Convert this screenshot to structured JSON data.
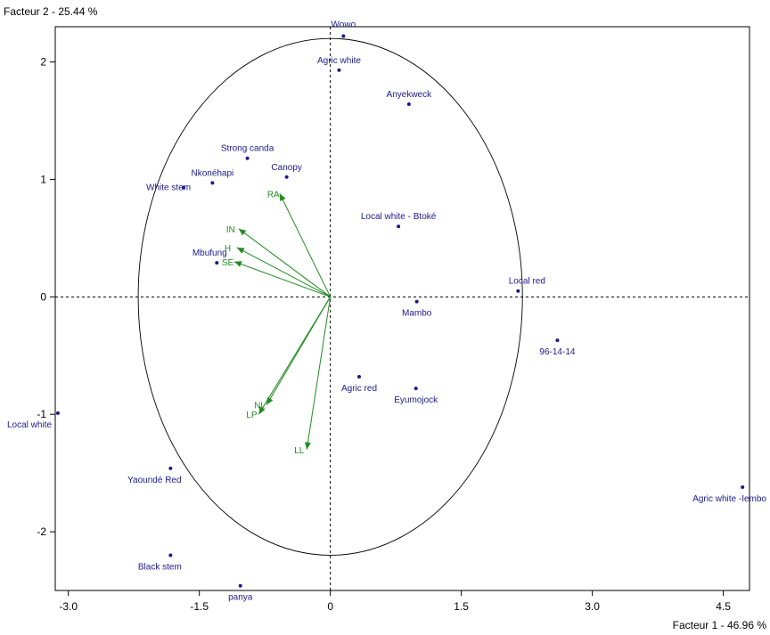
{
  "chart_data": {
    "type": "scatter",
    "title": "",
    "xlabel": "Facteur 1  -  46.96 %",
    "ylabel": "Facteur 2  -  25.44 %",
    "xlim": [
      -3.15,
      4.8
    ],
    "ylim": [
      -2.5,
      2.3
    ],
    "x_ticks": [
      -3.0,
      -1.5,
      0,
      1.5,
      3.0,
      4.5
    ],
    "x_tick_labels": [
      "-3.0",
      "-1.5",
      "0",
      "1.5",
      "3.0",
      "4.5"
    ],
    "y_ticks": [
      2,
      1,
      0,
      -1,
      -2
    ],
    "y_tick_labels": [
      "2",
      "1",
      "0",
      "-1",
      "-2"
    ],
    "grid": false,
    "zero_lines": "dotted",
    "circle_radius": 2.2,
    "point_color": "#1a1a8c",
    "vector_color": "#228b22",
    "points": [
      {
        "label": "Wowo",
        "x": 0.15,
        "y": 2.22
      },
      {
        "label": "Agric white",
        "x": 0.1,
        "y": 1.93
      },
      {
        "label": "Anyekweck",
        "x": 0.9,
        "y": 1.64
      },
      {
        "label": "Strong canda",
        "x": -0.95,
        "y": 1.18
      },
      {
        "label": "Canopy",
        "x": -0.5,
        "y": 1.02
      },
      {
        "label": "Nkonéhapi",
        "x": -1.35,
        "y": 0.97
      },
      {
        "label": "White stem",
        "x": -1.68,
        "y": 0.93
      },
      {
        "label": "Local white - Btoké",
        "x": 0.78,
        "y": 0.6
      },
      {
        "label": "Mbufung",
        "x": -1.3,
        "y": 0.29
      },
      {
        "label": "Local red",
        "x": 2.15,
        "y": 0.05
      },
      {
        "label": "Mambo",
        "x": 0.99,
        "y": -0.04
      },
      {
        "label": "96-14-14",
        "x": 2.6,
        "y": -0.37
      },
      {
        "label": "Agric red",
        "x": 0.33,
        "y": -0.68
      },
      {
        "label": "Eyumojock",
        "x": 0.98,
        "y": -0.78
      },
      {
        "label": "Local white",
        "x": -3.12,
        "y": -0.99
      },
      {
        "label": "Yaoundé Red",
        "x": -1.83,
        "y": -1.46
      },
      {
        "label": "Agric white -Iembo",
        "x": 4.72,
        "y": -1.62
      },
      {
        "label": "Black stem",
        "x": -1.83,
        "y": -2.2
      },
      {
        "label": "panya",
        "x": -1.03,
        "y": -2.46
      }
    ],
    "vectors": [
      {
        "label": "RA",
        "x": -0.58,
        "y": 0.88
      },
      {
        "label": "IN",
        "x": -1.05,
        "y": 0.58
      },
      {
        "label": "H",
        "x": -1.07,
        "y": 0.42
      },
      {
        "label": "SE",
        "x": -1.1,
        "y": 0.3
      },
      {
        "label": "NL",
        "x": -0.73,
        "y": -0.92
      },
      {
        "label": "LP",
        "x": -0.82,
        "y": -1.0
      },
      {
        "label": "LL",
        "x": -0.27,
        "y": -1.3
      }
    ]
  }
}
